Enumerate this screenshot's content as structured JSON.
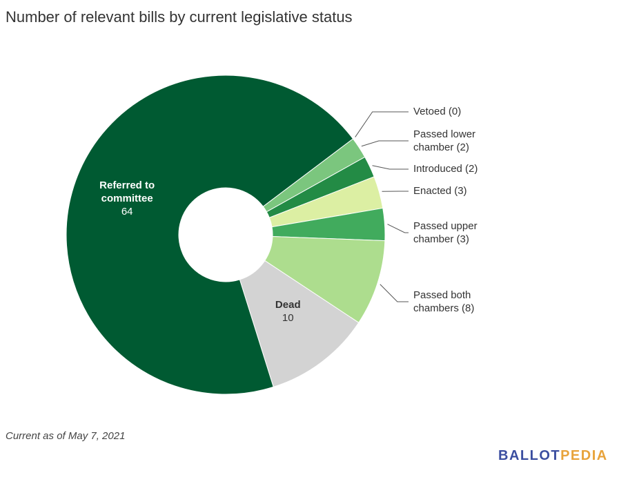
{
  "chart_data": {
    "type": "donut",
    "title": "Number of relevant bills by current legislative status",
    "categories": [
      "Vetoed",
      "Passed lower chamber",
      "Introduced",
      "Enacted",
      "Passed upper chamber",
      "Passed both chambers",
      "Dead",
      "Referred to committee"
    ],
    "values": [
      0,
      2,
      2,
      3,
      3,
      8,
      10,
      64
    ],
    "value_labels": [
      "Vetoed (0)",
      "Passed lower chamber (2)",
      "Introduced (2)",
      "Enacted (3)",
      "Passed upper chamber (3)",
      "Passed both chambers (8)",
      "10",
      "64"
    ],
    "colors": [
      "#1a7a3e",
      "#7bc67e",
      "#238b45",
      "#dcefa3",
      "#41ab5d",
      "#addd8e",
      "#d3d3d3",
      "#005a32"
    ],
    "note": "Current as of May 7, 2021"
  },
  "logo": {
    "part1": "BALLOT",
    "part2": "PEDIA"
  }
}
